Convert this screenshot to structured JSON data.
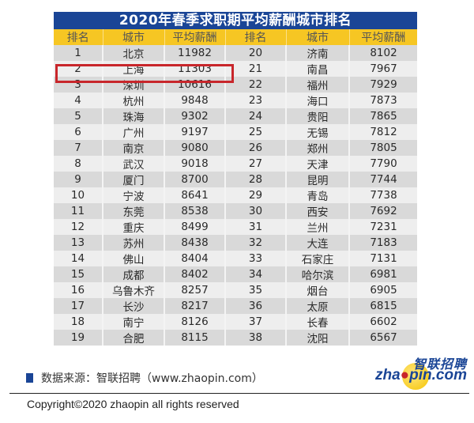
{
  "title": "2020年春季求职期平均薪酬城市排名",
  "table": {
    "headers": [
      "排名",
      "城市",
      "平均薪酬",
      "排名",
      "城市",
      "平均薪酬"
    ],
    "rows": [
      [
        "1",
        "北京",
        "11982",
        "20",
        "济南",
        "8102"
      ],
      [
        "2",
        "上海",
        "11303",
        "21",
        "南昌",
        "7967"
      ],
      [
        "3",
        "深圳",
        "10616",
        "22",
        "福州",
        "7929"
      ],
      [
        "4",
        "杭州",
        "9848",
        "23",
        "海口",
        "7873"
      ],
      [
        "5",
        "珠海",
        "9302",
        "24",
        "贵阳",
        "7865"
      ],
      [
        "6",
        "广州",
        "9197",
        "25",
        "无锡",
        "7812"
      ],
      [
        "7",
        "南京",
        "9080",
        "26",
        "郑州",
        "7805"
      ],
      [
        "8",
        "武汉",
        "9018",
        "27",
        "天津",
        "7790"
      ],
      [
        "9",
        "厦门",
        "8700",
        "28",
        "昆明",
        "7744"
      ],
      [
        "10",
        "宁波",
        "8641",
        "29",
        "青岛",
        "7738"
      ],
      [
        "11",
        "东莞",
        "8538",
        "30",
        "西安",
        "7692"
      ],
      [
        "12",
        "重庆",
        "8499",
        "31",
        "兰州",
        "7231"
      ],
      [
        "13",
        "苏州",
        "8438",
        "32",
        "大连",
        "7183"
      ],
      [
        "14",
        "佛山",
        "8404",
        "33",
        "石家庄",
        "7131"
      ],
      [
        "15",
        "成都",
        "8402",
        "34",
        "哈尔滨",
        "6981"
      ],
      [
        "16",
        "乌鲁木齐",
        "8257",
        "35",
        "烟台",
        "6905"
      ],
      [
        "17",
        "长沙",
        "8217",
        "36",
        "太原",
        "6815"
      ],
      [
        "18",
        "南宁",
        "8126",
        "37",
        "长春",
        "6602"
      ],
      [
        "19",
        "合肥",
        "8115",
        "38",
        "沈阳",
        "6567"
      ]
    ],
    "highlighted_row": 2
  },
  "source_text": "数据来源：智联招聘（www.zhaopin.com）",
  "logo": {
    "cn": "智联招聘",
    "en_prefix": "zha",
    "en_dot": "●",
    "en_suffix": "pin.com"
  },
  "copyright": "Copyright©2020 zhaopin all rights reserved",
  "colors": {
    "title_bg": "#1a4596",
    "header_bg": "#f6c623",
    "highlight_border": "#c8262b"
  }
}
